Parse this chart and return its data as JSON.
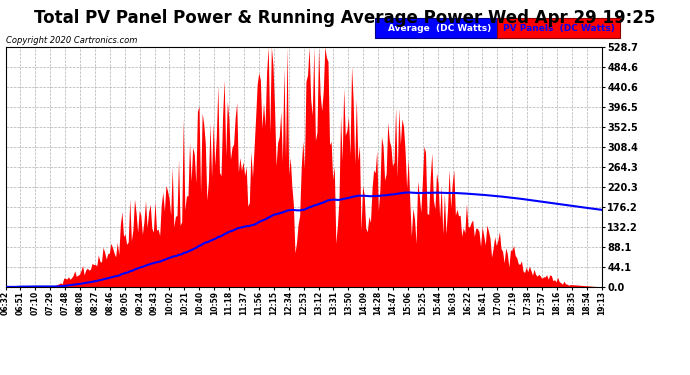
{
  "title": "Total PV Panel Power & Running Average Power Wed Apr 29 19:25",
  "copyright": "Copyright 2020 Cartronics.com",
  "yticks": [
    0.0,
    44.1,
    88.1,
    132.2,
    176.2,
    220.3,
    264.3,
    308.4,
    352.5,
    396.5,
    440.6,
    484.6,
    528.7
  ],
  "ylim": [
    0.0,
    528.7
  ],
  "legend_avg_label": "Average  (DC Watts)",
  "legend_pv_label": "PV Panels  (DC Watts)",
  "avg_color": "#0000ff",
  "pv_color": "#ff0000",
  "bg_color": "#ffffff",
  "grid_color": "#aaaaaa",
  "title_fontsize": 12,
  "n_points": 380,
  "xtick_labels": [
    "06:32",
    "06:51",
    "07:10",
    "07:29",
    "07:48",
    "08:08",
    "08:27",
    "08:46",
    "09:05",
    "09:24",
    "09:43",
    "10:02",
    "10:21",
    "10:40",
    "10:59",
    "11:18",
    "11:37",
    "11:56",
    "12:15",
    "12:34",
    "12:53",
    "13:12",
    "13:31",
    "13:50",
    "14:09",
    "14:28",
    "14:47",
    "15:06",
    "15:25",
    "15:44",
    "16:03",
    "16:22",
    "16:41",
    "17:00",
    "17:19",
    "17:38",
    "17:57",
    "18:16",
    "18:35",
    "18:54",
    "19:13"
  ]
}
